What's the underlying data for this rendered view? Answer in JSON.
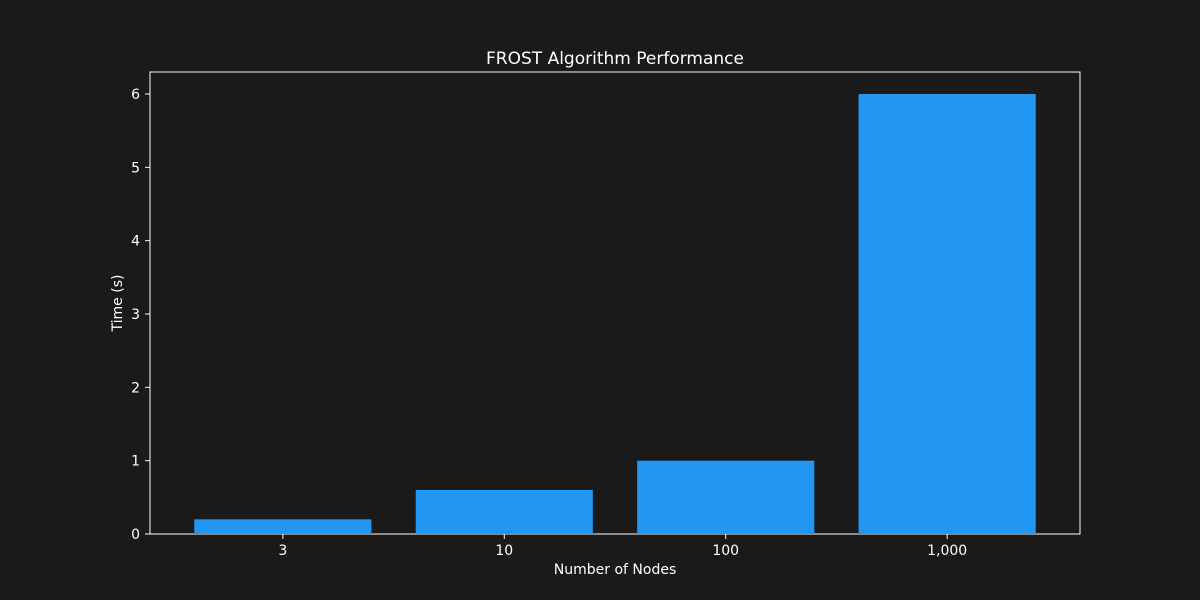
{
  "colors": {
    "background": "#1a1a1a",
    "axes_background": "#1a1a1a",
    "bar": "#2196f3",
    "axis": "#ffffff",
    "text": "#ffffff"
  },
  "chart_data": {
    "type": "bar",
    "title": "FROST Algorithm Performance",
    "xlabel": "Number of Nodes",
    "ylabel": "Time (s)",
    "categories": [
      "3",
      "10",
      "100",
      "1,000"
    ],
    "values": [
      0.2,
      0.6,
      1.0,
      6.0
    ],
    "ylim": [
      0,
      6.3
    ],
    "yticks": [
      0,
      1,
      2,
      3,
      4,
      5,
      6
    ],
    "grid": false,
    "legend": "none"
  }
}
